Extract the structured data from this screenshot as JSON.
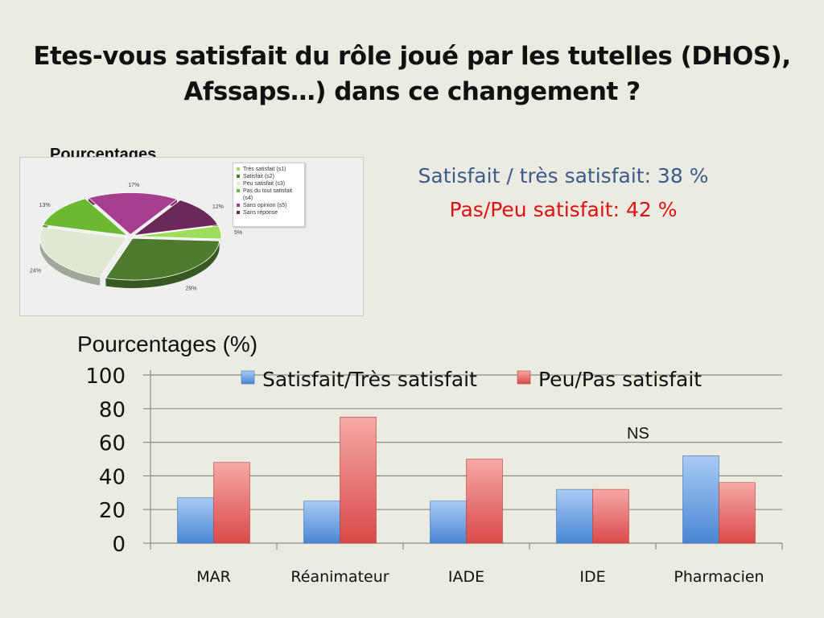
{
  "slide": {
    "title_line1": "Etes-vous satisfait du rôle joué par les tutelles (DHOS),",
    "title_line2": "Afssaps…) dans ce changement ?"
  },
  "summary": {
    "satisfied": "Satisfait / très satisfait: 38 %",
    "unsatisfied": "Pas/Peu satisfait: 42 %"
  },
  "annotation": "NS",
  "chart_data": [
    {
      "type": "pie",
      "title": "Pourcentages",
      "three_d": true,
      "legend_position": "top-right",
      "slices": [
        {
          "label": "Très satisfait (s1)",
          "value": 5,
          "display": "5%",
          "color": "#9edd5a"
        },
        {
          "label": "Satisfait (s2)",
          "value": 29,
          "display": "29%",
          "color": "#4d7a2c"
        },
        {
          "label": "Peu satisfait (s3)",
          "value": 24,
          "display": "24%",
          "color": "#dfe9d2"
        },
        {
          "label": "Pas du tout satisfait (s4)",
          "value": 13,
          "display": "13%",
          "color": "#6db832"
        },
        {
          "label": "Sans opinion (s5)",
          "value": 17,
          "display": "17%",
          "color": "#a63d8f"
        },
        {
          "label": "Sans réponse",
          "value": 12,
          "display": "12%",
          "color": "#6b2858"
        }
      ]
    },
    {
      "type": "bar",
      "title": "",
      "ylabel": "Pourcentages (%)",
      "xlabel": "",
      "ylim": [
        0,
        100
      ],
      "yticks": [
        0,
        20,
        40,
        60,
        80,
        100
      ],
      "grid": true,
      "legend_position": "top",
      "categories": [
        "MAR",
        "Réanimateur",
        "IADE",
        "IDE",
        "Pharmacien"
      ],
      "series": [
        {
          "name": "Satisfait/Très satisfait",
          "values": [
            27,
            25,
            25,
            32,
            52
          ],
          "color": "#4a86d4"
        },
        {
          "name": "Peu/Pas satisfait",
          "values": [
            48,
            75,
            50,
            32,
            36
          ],
          "color": "#d94a4a"
        }
      ]
    }
  ]
}
